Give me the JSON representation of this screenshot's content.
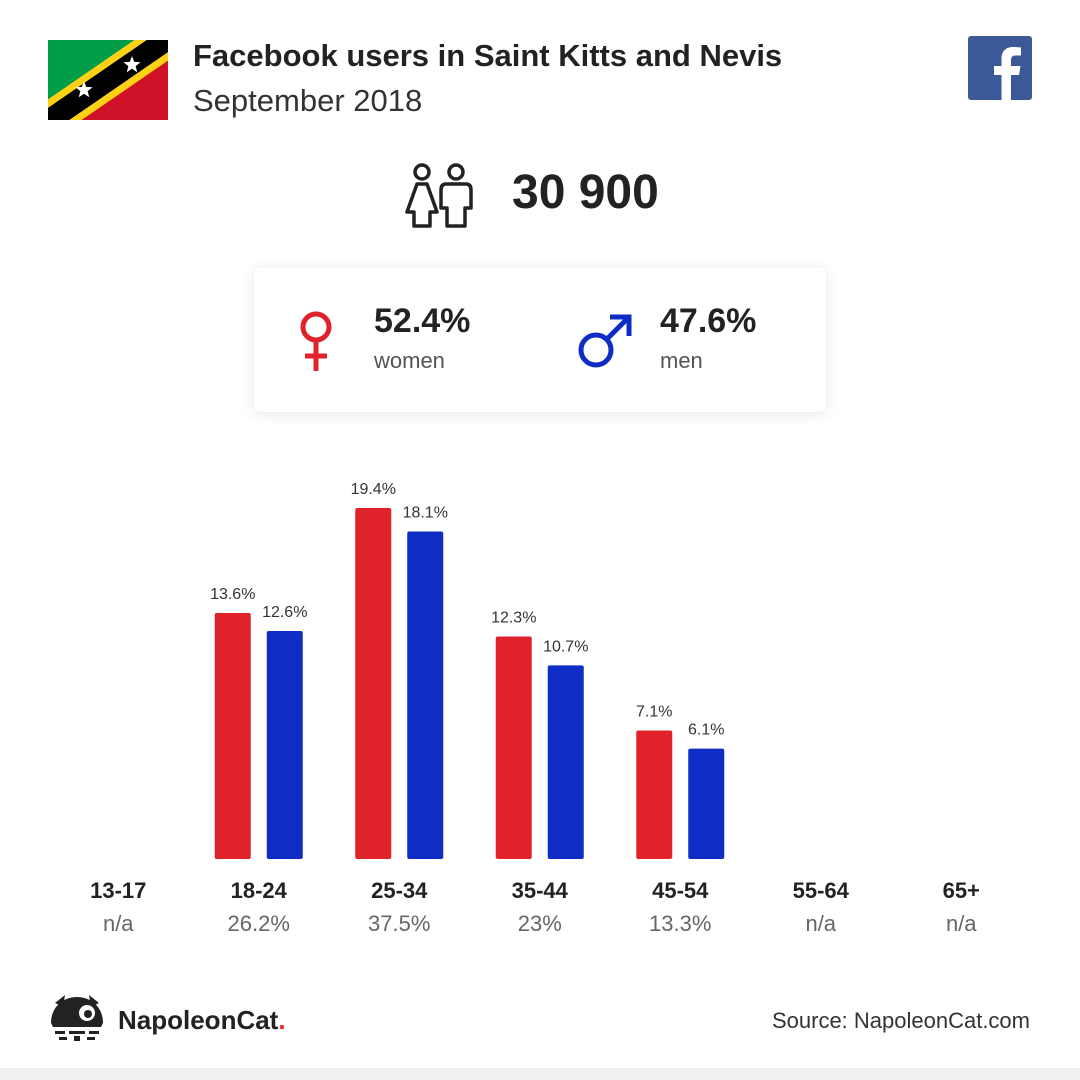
{
  "header": {
    "title": "Facebook users in Saint Kitts and Nevis",
    "subtitle": "September 2018"
  },
  "icons": {
    "flag": "saint-kitts-and-nevis-flag",
    "platform": "facebook-logo",
    "users": "users-icon",
    "female": "female-symbol-icon",
    "male": "male-symbol-icon",
    "brand": "napoleoncat-logo"
  },
  "summary": {
    "total_users": "30 900",
    "women_pct": "52.4%",
    "women_label": "women",
    "men_pct": "47.6%",
    "men_label": "men"
  },
  "colors": {
    "women": "#e0222a",
    "men": "#0f2cc4",
    "facebook": "#3b5998"
  },
  "chart_data": {
    "type": "bar",
    "categories": [
      "13-17",
      "18-24",
      "25-34",
      "35-44",
      "45-54",
      "55-64",
      "65+"
    ],
    "category_totals": [
      "n/a",
      "26.2%",
      "37.5%",
      "23%",
      "13.3%",
      "n/a",
      "n/a"
    ],
    "series": [
      {
        "values": [
          null,
          13.6,
          19.4,
          12.3,
          7.1,
          null,
          null
        ],
        "labels": [
          "",
          "13.6%",
          "19.4%",
          "12.3%",
          "7.1%",
          "",
          ""
        ]
      },
      {
        "values": [
          null,
          12.6,
          18.1,
          10.7,
          6.1,
          null,
          null
        ],
        "labels": [
          "",
          "12.6%",
          "18.1%",
          "10.7%",
          "6.1%",
          "",
          ""
        ]
      }
    ],
    "ylim": [
      0,
      19.4
    ],
    "grid": false
  },
  "footer": {
    "brand": "NapoleonCat",
    "brand_dot": ".",
    "source": "Source: NapoleonCat.com"
  }
}
